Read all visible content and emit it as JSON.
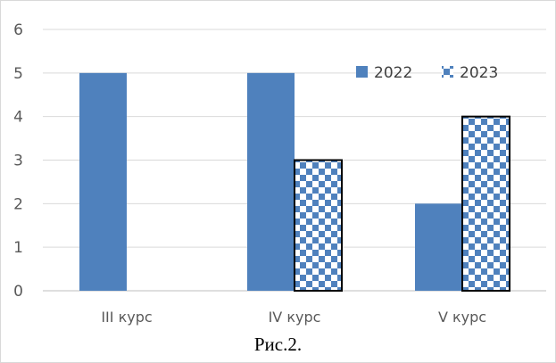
{
  "caption": "Рис.2.",
  "chart_data": {
    "type": "bar",
    "categories": [
      "III курс",
      "IV курс",
      "V курс"
    ],
    "series": [
      {
        "name": "2022",
        "values": [
          5,
          5,
          2
        ],
        "color": "#4f81bd",
        "fill": "solid"
      },
      {
        "name": "2023",
        "values": [
          0,
          3,
          4
        ],
        "color": "#4f81bd",
        "fill": "checkered"
      }
    ],
    "ylim": [
      0,
      6
    ],
    "yticks": [
      0,
      1,
      2,
      3,
      4,
      5,
      6
    ],
    "grid": true,
    "legend_position": "top-right"
  }
}
